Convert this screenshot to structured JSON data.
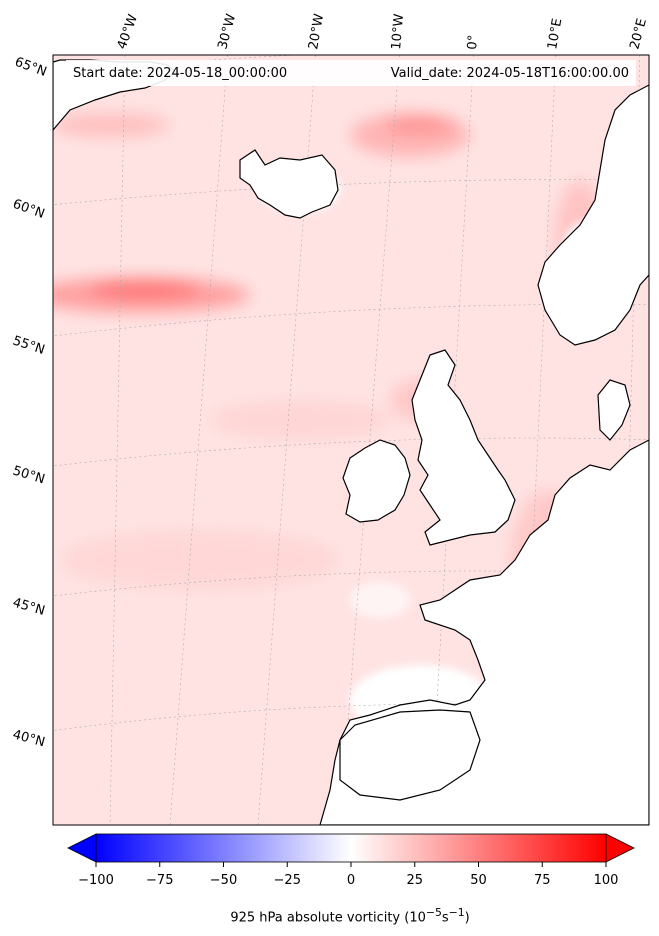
{
  "header": {
    "start_date": "Start date: 2024-05-18_00:00:00",
    "valid_date": "Valid_date: 2024-05-18T16:00:00.00"
  },
  "longitude_labels": [
    "40°W",
    "30°W",
    "20°W",
    "10°W",
    "0°",
    "10°E",
    "20°E"
  ],
  "latitude_labels": [
    "65°N",
    "60°N",
    "55°N",
    "50°N",
    "45°N",
    "40°N"
  ],
  "colorbar": {
    "ticks": [
      "−100",
      "−75",
      "−50",
      "−25",
      "0",
      "25",
      "50",
      "75",
      "100"
    ],
    "label_text": "925 hPa absolute vorticity (10",
    "label_exp1": "−5",
    "label_mid": "s",
    "label_exp2": "−1",
    "label_end": ")",
    "min": -100,
    "max": 100,
    "low_color": "#0000ff",
    "mid_color": "#ffffff",
    "high_color": "#ff0000"
  }
}
